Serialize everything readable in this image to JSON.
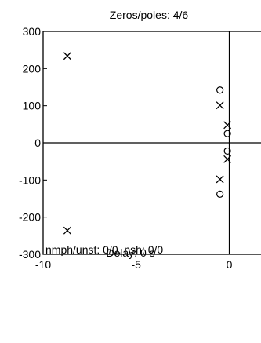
{
  "chart_data": {
    "type": "scatter",
    "title": "Zeros/poles: 4/6",
    "xlim": [
      -10,
      2
    ],
    "ylim": [
      -300,
      300
    ],
    "x_ticks": [
      -10,
      -5,
      0
    ],
    "y_ticks": [
      300,
      200,
      100,
      0,
      -100,
      -200,
      -300
    ],
    "grid": false,
    "series": [
      {
        "marker": "x",
        "points": [
          {
            "x": -8.7,
            "y": 234
          },
          {
            "x": -8.7,
            "y": -236
          },
          {
            "x": -0.5,
            "y": 101
          },
          {
            "x": -0.5,
            "y": -98
          },
          {
            "x": -0.1,
            "y": 48
          },
          {
            "x": -0.1,
            "y": -44
          }
        ]
      },
      {
        "marker": "o",
        "points": [
          {
            "x": -0.5,
            "y": 142
          },
          {
            "x": -0.5,
            "y": -138
          },
          {
            "x": -0.1,
            "y": 25
          },
          {
            "x": -0.1,
            "y": -22
          }
        ]
      }
    ],
    "annotation": "nmph/unst: 0/0, nsh: 0/0",
    "footer": "Delay: 0 s"
  }
}
